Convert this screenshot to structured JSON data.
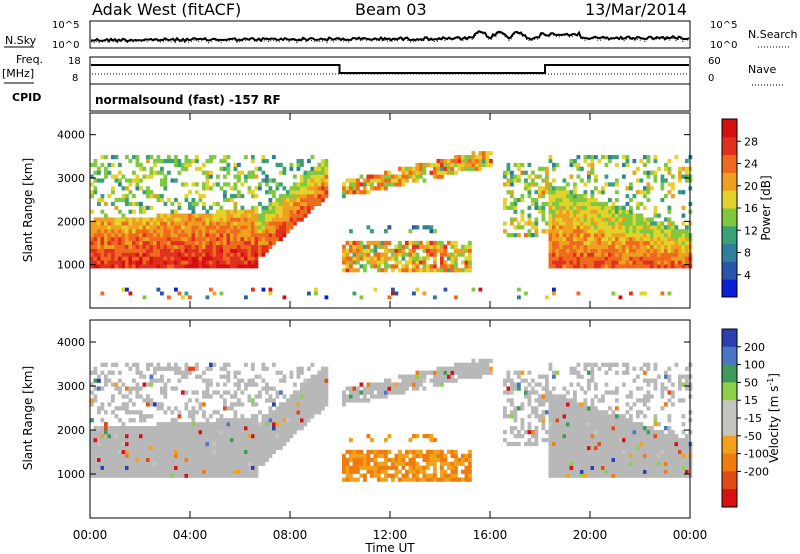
{
  "header": {
    "station": "Adak West (fitACF)",
    "beam": "Beam 03",
    "date": "13/Mar/2014"
  },
  "sky_panel": {
    "left_label": "N.Sky",
    "right_label": "N.Search",
    "ticks_left": [
      "10^5",
      "10^0"
    ],
    "ticks_right": [
      "10^5",
      "10^0"
    ]
  },
  "freq_panel": {
    "left_label_1": "Freq.",
    "left_label_2": "[MHz]",
    "right_label": "Nave",
    "ticks_left": [
      "18",
      "8"
    ],
    "ticks_right": [
      "60",
      "0"
    ]
  },
  "cpid": {
    "label": "CPID",
    "value": "normalsound (fast) -157 RF"
  },
  "colors": {
    "power_scale": [
      "#0a1fd6",
      "#2a55a8",
      "#2f7f9c",
      "#3aa07a",
      "#7fc840",
      "#e3d22a",
      "#f0a020",
      "#f06a1e",
      "#e0301e",
      "#d41010"
    ],
    "velocity_scale": [
      "#2a3fb0",
      "#4a76c8",
      "#3d9a58",
      "#8ed04a",
      "#c4c4c0",
      "#c4c4c0",
      "#f2a21a",
      "#f07c10",
      "#e04a14",
      "#d81010"
    ],
    "ground_scatter": "#b8b8b8"
  },
  "chart_data": [
    {
      "type": "heatmap",
      "title": "Power",
      "ylabel": "Slant Range [km]",
      "xlabel": "Time UT",
      "x_ticks": [
        "00:00",
        "04:00",
        "08:00",
        "12:00",
        "16:00",
        "20:00",
        "00:00"
      ],
      "x_range_hours": [
        0,
        24
      ],
      "y_ticks": [
        "1000",
        "2000",
        "3000",
        "4000"
      ],
      "y_range_km": [
        0,
        4500
      ],
      "colorbar": {
        "label": "Power [dB]",
        "tick_labels": [
          "28",
          "24",
          "20",
          "16",
          "12",
          "8",
          "4"
        ],
        "range": [
          0,
          32
        ]
      }
    },
    {
      "type": "heatmap",
      "title": "Velocity",
      "ylabel": "Slant Range [km]",
      "xlabel": "Time UT",
      "x_ticks": [
        "00:00",
        "04:00",
        "08:00",
        "12:00",
        "16:00",
        "20:00",
        "00:00"
      ],
      "x_range_hours": [
        0,
        24
      ],
      "y_ticks": [
        "1000",
        "2000",
        "3000",
        "4000"
      ],
      "y_range_km": [
        0,
        4500
      ],
      "colorbar": {
        "label_main": "Velocity [m s",
        "label_sup": "-1",
        "label_end": "]",
        "tick_labels": [
          "200",
          "100",
          "50",
          "15",
          "-15",
          "-50",
          "-100",
          "-200"
        ]
      }
    }
  ]
}
